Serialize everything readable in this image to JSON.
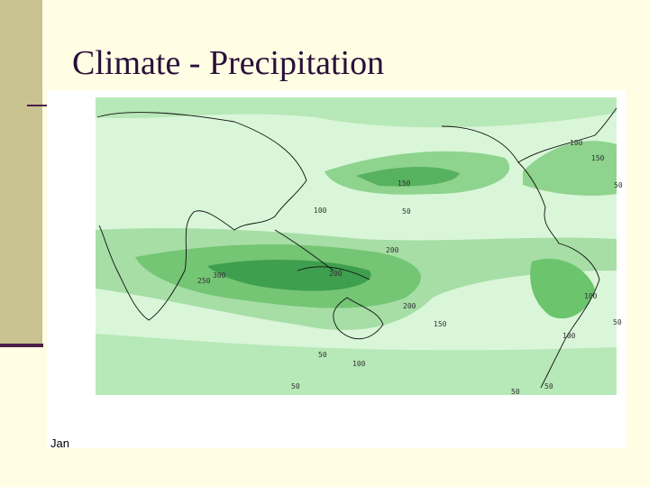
{
  "title": "Climate - Precipitation",
  "map": {
    "month": "Jan",
    "contour_labels": [
      "100",
      "150",
      "50",
      "150",
      "100",
      "50",
      "200",
      "300",
      "250",
      "200",
      "200",
      "150",
      "100",
      "50",
      "100",
      "50",
      "100",
      "50",
      "50",
      "50"
    ]
  }
}
